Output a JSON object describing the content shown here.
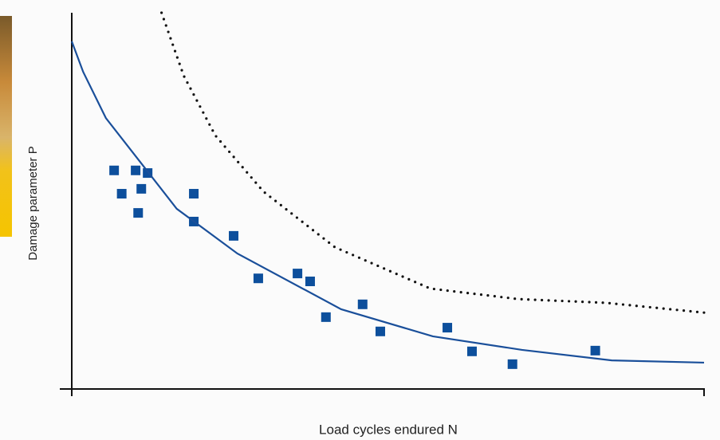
{
  "chart_data": {
    "type": "scatter",
    "x_label": "Load cycles endured N",
    "y_label": "Damage parameter P",
    "xlim": [
      0,
      100
    ],
    "ylim": [
      0,
      100
    ],
    "series": [
      {
        "type": "scatter",
        "color": "#0d4f9c",
        "x": [
          6.7,
          7.9,
          10.1,
          11.0,
          10.5,
          12.0,
          19.3,
          19.3,
          25.6,
          29.5,
          35.7,
          37.7,
          40.2,
          46.0,
          48.8,
          59.4,
          63.3,
          69.7,
          82.8
        ],
        "values": [
          58.1,
          51.9,
          58.1,
          53.2,
          46.8,
          57.4,
          51.9,
          44.5,
          40.7,
          29.4,
          30.7,
          28.6,
          19.1,
          22.5,
          15.3,
          16.3,
          10.0,
          6.6,
          10.2
        ]
      },
      {
        "type": "line",
        "color": "#1a4f9a",
        "style": "solid",
        "x": [
          0,
          1.8,
          5.4,
          10.7,
          16.6,
          26.2,
          42.6,
          57.1,
          71.2,
          85.4,
          100
        ],
        "values": [
          92.4,
          84.3,
          72.0,
          60.6,
          47.9,
          36.0,
          21.2,
          14.0,
          10.4,
          7.6,
          7.0
        ]
      },
      {
        "type": "line",
        "color": "#111111",
        "style": "dotted",
        "x": [
          14.2,
          17.7,
          22.7,
          30.3,
          41.6,
          56.7,
          70.6,
          84.5,
          100
        ],
        "values": [
          100,
          83.3,
          67.4,
          52.5,
          37.7,
          26.7,
          23.9,
          22.9,
          20.3
        ]
      }
    ]
  }
}
